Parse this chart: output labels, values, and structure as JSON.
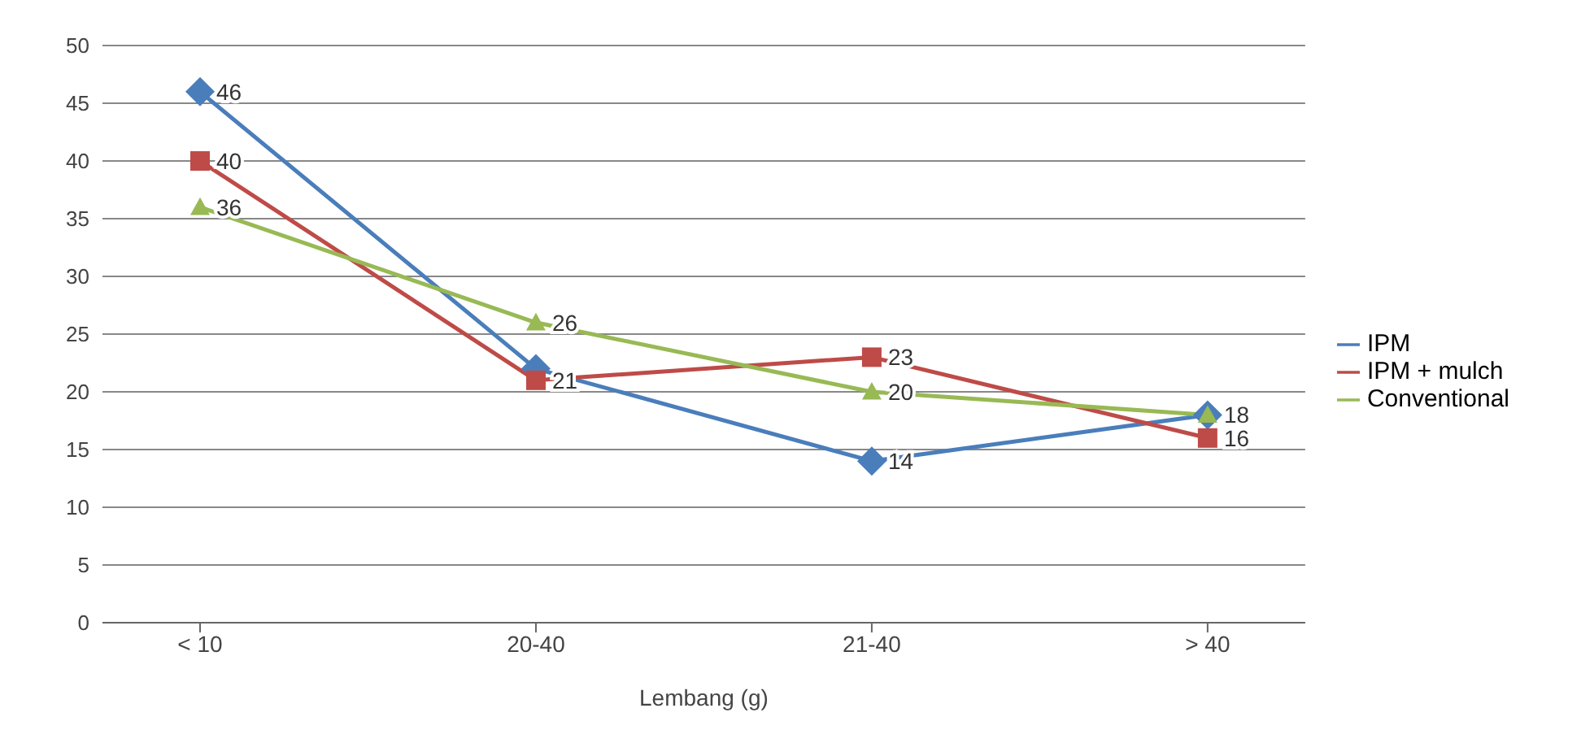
{
  "chart_data": {
    "type": "line",
    "xlabel": "Lembang (g)",
    "categories": [
      "< 10",
      "20-40",
      "21-40",
      "> 40"
    ],
    "series": [
      {
        "name": "IPM",
        "color": "#4a7ebb",
        "marker": "diamond",
        "values": [
          46,
          22,
          14,
          18
        ],
        "value_labels": [
          "46",
          null,
          "14",
          null
        ]
      },
      {
        "name": "IPM + mulch",
        "color": "#be4b48",
        "marker": "square",
        "values": [
          40,
          21,
          23,
          16
        ],
        "value_labels": [
          "40",
          "21",
          "23",
          "16"
        ]
      },
      {
        "name": "Conventional",
        "color": "#98b954",
        "marker": "triangle",
        "values": [
          36,
          26,
          20,
          18
        ],
        "value_labels": [
          "36",
          "26",
          "20",
          "18"
        ]
      }
    ],
    "ylim": [
      0,
      50
    ],
    "yticks": [
      0,
      5,
      10,
      15,
      20,
      25,
      30,
      35,
      40,
      45,
      50
    ],
    "grid": "y",
    "legend": "right"
  }
}
